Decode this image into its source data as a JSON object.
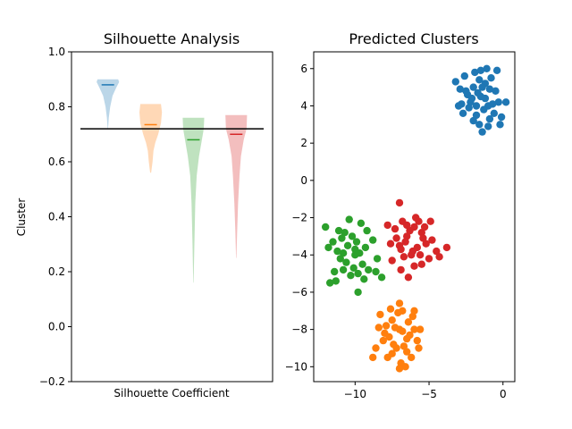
{
  "chart_data": [
    {
      "type": "violin",
      "title": "Silhouette Analysis",
      "xlabel": "Silhouette Coefficient",
      "ylabel": "Cluster",
      "ylim": [
        -0.2,
        1.0
      ],
      "yticks": [
        "−0.2",
        "0.0",
        "0.2",
        "0.4",
        "0.6",
        "0.8",
        "1.0"
      ],
      "ytick_values": [
        -0.2,
        0.0,
        0.2,
        0.4,
        0.6,
        0.8,
        1.0
      ],
      "reference_line": 0.72,
      "grid": false,
      "violins": [
        {
          "color": "#1f77b4",
          "min": 0.72,
          "max": 0.9,
          "median": 0.88,
          "profile": [
            [
              0.72,
              0.002
            ],
            [
              0.76,
              0.01
            ],
            [
              0.8,
              0.025
            ],
            [
              0.84,
              0.05
            ],
            [
              0.87,
              0.09
            ],
            [
              0.89,
              0.12
            ],
            [
              0.9,
              0.11
            ]
          ]
        },
        {
          "color": "#ff7f0e",
          "min": 0.56,
          "max": 0.81,
          "median": 0.735,
          "profile": [
            [
              0.56,
              0.005
            ],
            [
              0.6,
              0.02
            ],
            [
              0.64,
              0.03
            ],
            [
              0.67,
              0.05
            ],
            [
              0.7,
              0.08
            ],
            [
              0.74,
              0.11
            ],
            [
              0.78,
              0.12
            ],
            [
              0.81,
              0.11
            ]
          ]
        },
        {
          "color": "#2ca02c",
          "min": 0.16,
          "max": 0.76,
          "median": 0.68,
          "profile": [
            [
              0.16,
              0.002
            ],
            [
              0.3,
              0.01
            ],
            [
              0.45,
              0.02
            ],
            [
              0.55,
              0.035
            ],
            [
              0.62,
              0.06
            ],
            [
              0.68,
              0.09
            ],
            [
              0.72,
              0.11
            ],
            [
              0.76,
              0.115
            ]
          ]
        },
        {
          "color": "#d62728",
          "min": 0.25,
          "max": 0.77,
          "median": 0.7,
          "profile": [
            [
              0.25,
              0.002
            ],
            [
              0.35,
              0.01
            ],
            [
              0.45,
              0.02
            ],
            [
              0.55,
              0.035
            ],
            [
              0.62,
              0.05
            ],
            [
              0.68,
              0.08
            ],
            [
              0.72,
              0.11
            ],
            [
              0.77,
              0.115
            ]
          ]
        }
      ]
    },
    {
      "type": "scatter",
      "title": "Predicted Clusters",
      "xlim": [
        -12.8,
        0.8
      ],
      "ylim": [
        -10.8,
        6.9
      ],
      "xticks": [
        "−10",
        "−5",
        "0"
      ],
      "xtick_values": [
        -10,
        -5,
        0
      ],
      "yticks": [
        "−10",
        "−8",
        "−6",
        "−4",
        "−2",
        "0",
        "2",
        "4",
        "6"
      ],
      "ytick_values": [
        -10,
        -8,
        -6,
        -4,
        -2,
        0,
        2,
        4,
        6
      ],
      "grid": false,
      "series": [
        {
          "color": "#1f77b4",
          "points": [
            [
              -1.5,
              4.5
            ],
            [
              -2.0,
              5.0
            ],
            [
              -1.0,
              4.0
            ],
            [
              -2.5,
              4.8
            ],
            [
              -1.8,
              3.5
            ],
            [
              -0.8,
              5.5
            ],
            [
              -2.2,
              4.2
            ],
            [
              -1.2,
              5.2
            ],
            [
              -1.6,
              3.0
            ],
            [
              -0.5,
              4.8
            ],
            [
              -3.2,
              5.3
            ],
            [
              -2.8,
              4.1
            ],
            [
              -1.9,
              5.8
            ],
            [
              -0.3,
              4.2
            ],
            [
              -1.4,
              2.6
            ],
            [
              -0.9,
              3.3
            ],
            [
              -2.3,
              3.9
            ],
            [
              -1.1,
              6.0
            ],
            [
              -2.6,
              5.6
            ],
            [
              -0.6,
              3.6
            ],
            [
              -1.7,
              4.7
            ],
            [
              -2.1,
              4.4
            ],
            [
              -1.3,
              3.8
            ],
            [
              -0.9,
              4.9
            ],
            [
              -2.4,
              4.6
            ],
            [
              -1.6,
              5.4
            ],
            [
              -0.2,
              3.0
            ],
            [
              -2.9,
              4.9
            ],
            [
              -1.0,
              2.9
            ],
            [
              -1.8,
              4.0
            ],
            [
              -0.4,
              5.9
            ],
            [
              -2.7,
              3.6
            ],
            [
              -1.5,
              5.9
            ],
            [
              0.2,
              4.2
            ],
            [
              -3.0,
              4.0
            ],
            [
              -1.2,
              4.4
            ],
            [
              -0.7,
              4.1
            ],
            [
              -2.0,
              3.2
            ],
            [
              -1.4,
              5.0
            ],
            [
              -0.1,
              3.4
            ]
          ]
        },
        {
          "color": "#ff7f0e",
          "points": [
            [
              -7.0,
              -8.0
            ],
            [
              -6.5,
              -8.5
            ],
            [
              -7.5,
              -7.5
            ],
            [
              -6.0,
              -8.0
            ],
            [
              -7.2,
              -9.0
            ],
            [
              -6.8,
              -7.0
            ],
            [
              -8.0,
              -8.2
            ],
            [
              -6.2,
              -9.5
            ],
            [
              -7.8,
              -9.5
            ],
            [
              -6.6,
              -10.0
            ],
            [
              -8.3,
              -7.2
            ],
            [
              -7.0,
              -6.6
            ],
            [
              -5.8,
              -8.6
            ],
            [
              -7.4,
              -8.8
            ],
            [
              -6.4,
              -7.6
            ],
            [
              -8.6,
              -9.0
            ],
            [
              -6.9,
              -9.8
            ],
            [
              -7.6,
              -6.9
            ],
            [
              -5.6,
              -8.0
            ],
            [
              -8.1,
              -8.6
            ],
            [
              -6.1,
              -7.3
            ],
            [
              -7.3,
              -7.9
            ],
            [
              -6.7,
              -8.9
            ],
            [
              -7.9,
              -7.8
            ],
            [
              -6.3,
              -8.3
            ],
            [
              -7.1,
              -7.1
            ],
            [
              -8.8,
              -9.5
            ],
            [
              -5.7,
              -9.0
            ],
            [
              -7.7,
              -8.4
            ],
            [
              -6.5,
              -9.2
            ],
            [
              -8.4,
              -7.9
            ],
            [
              -7.0,
              -10.1
            ],
            [
              -6.0,
              -7.0
            ],
            [
              -7.5,
              -9.3
            ],
            [
              -6.8,
              -8.1
            ]
          ]
        },
        {
          "color": "#2ca02c",
          "points": [
            [
              -10.0,
              -4.0
            ],
            [
              -10.5,
              -3.5
            ],
            [
              -9.5,
              -4.5
            ],
            [
              -11.0,
              -4.2
            ],
            [
              -10.2,
              -3.0
            ],
            [
              -9.8,
              -5.0
            ],
            [
              -11.5,
              -3.3
            ],
            [
              -10.8,
              -4.8
            ],
            [
              -9.3,
              -3.6
            ],
            [
              -10.4,
              -2.1
            ],
            [
              -9.6,
              -2.3
            ],
            [
              -12.0,
              -2.5
            ],
            [
              -11.7,
              -5.5
            ],
            [
              -11.3,
              -5.4
            ],
            [
              -9.8,
              -6.0
            ],
            [
              -8.5,
              -4.2
            ],
            [
              -8.8,
              -3.2
            ],
            [
              -11.2,
              -3.8
            ],
            [
              -10.6,
              -4.4
            ],
            [
              -9.1,
              -4.8
            ],
            [
              -10.9,
              -3.1
            ],
            [
              -9.9,
              -3.3
            ],
            [
              -11.4,
              -4.9
            ],
            [
              -10.1,
              -4.7
            ],
            [
              -9.4,
              -5.3
            ],
            [
              -8.6,
              -4.9
            ],
            [
              -10.7,
              -2.8
            ],
            [
              -11.8,
              -3.6
            ],
            [
              -9.7,
              -3.9
            ],
            [
              -10.3,
              -5.1
            ],
            [
              -11.1,
              -2.7
            ],
            [
              -8.2,
              -5.2
            ],
            [
              -9.2,
              -2.7
            ],
            [
              -10.0,
              -3.7
            ],
            [
              -10.8,
              -3.9
            ]
          ]
        },
        {
          "color": "#d62728",
          "points": [
            [
              -6.5,
              -3.0
            ],
            [
              -6.0,
              -2.5
            ],
            [
              -7.0,
              -3.5
            ],
            [
              -5.5,
              -2.8
            ],
            [
              -6.8,
              -2.2
            ],
            [
              -6.2,
              -4.0
            ],
            [
              -5.8,
              -3.6
            ],
            [
              -7.3,
              -2.6
            ],
            [
              -7.0,
              -1.2
            ],
            [
              -6.9,
              -4.8
            ],
            [
              -5.5,
              -4.5
            ],
            [
              -4.8,
              -3.2
            ],
            [
              -4.5,
              -3.8
            ],
            [
              -3.8,
              -3.6
            ],
            [
              -4.9,
              -2.2
            ],
            [
              -7.8,
              -2.4
            ],
            [
              -7.5,
              -4.3
            ],
            [
              -6.4,
              -5.2
            ],
            [
              -5.2,
              -3.4
            ],
            [
              -6.6,
              -3.3
            ],
            [
              -5.9,
              -2.0
            ],
            [
              -6.1,
              -3.8
            ],
            [
              -7.2,
              -3.1
            ],
            [
              -5.3,
              -2.5
            ],
            [
              -6.7,
              -4.1
            ],
            [
              -5.6,
              -4.0
            ],
            [
              -7.6,
              -3.4
            ],
            [
              -6.3,
              -2.7
            ],
            [
              -5.0,
              -4.2
            ],
            [
              -6.0,
              -4.6
            ],
            [
              -4.3,
              -4.1
            ],
            [
              -5.7,
              -2.2
            ],
            [
              -6.9,
              -3.7
            ],
            [
              -5.4,
              -3.1
            ],
            [
              -6.5,
              -2.4
            ]
          ]
        }
      ]
    }
  ]
}
